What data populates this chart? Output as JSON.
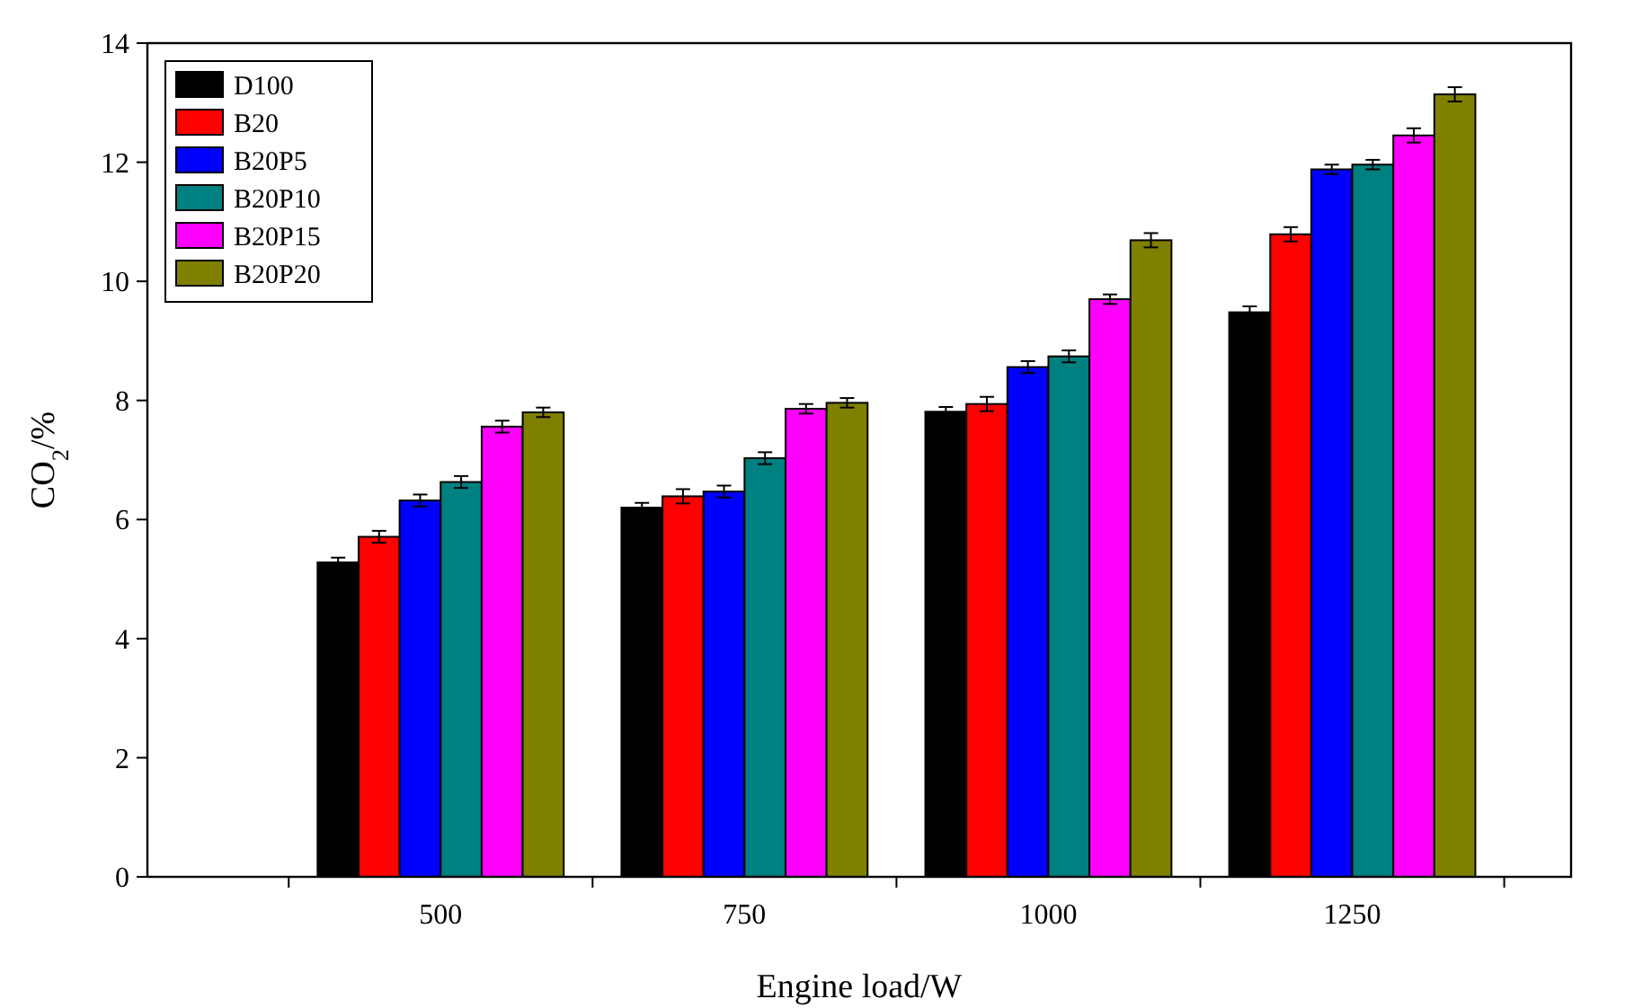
{
  "chart_data": {
    "type": "bar",
    "xlabel": "Engine load/W",
    "ylabel": "CO$_{2}$/%",
    "categories": [
      "500",
      "750",
      "1000",
      "1250"
    ],
    "ylim": [
      0,
      14
    ],
    "yticks": [
      0,
      2,
      4,
      6,
      8,
      10,
      12,
      14
    ],
    "legend": "top left",
    "grid": false,
    "series": [
      {
        "name": "D100",
        "color": "#000000",
        "values": [
          5.28,
          6.2,
          7.81,
          9.48
        ],
        "errors": [
          0.08,
          0.08,
          0.08,
          0.1
        ]
      },
      {
        "name": "B20",
        "color": "#ff0000",
        "values": [
          5.71,
          6.39,
          7.94,
          10.79
        ],
        "errors": [
          0.1,
          0.12,
          0.12,
          0.12
        ]
      },
      {
        "name": "B20P5",
        "color": "#0000ff",
        "values": [
          6.32,
          6.47,
          8.56,
          11.88
        ],
        "errors": [
          0.1,
          0.1,
          0.1,
          0.08
        ]
      },
      {
        "name": "B20P10",
        "color": "#008080",
        "values": [
          6.63,
          7.03,
          8.74,
          11.96
        ],
        "errors": [
          0.1,
          0.1,
          0.1,
          0.08
        ]
      },
      {
        "name": "B20P15",
        "color": "#ff00ff",
        "values": [
          7.56,
          7.86,
          9.7,
          12.45
        ],
        "errors": [
          0.1,
          0.08,
          0.08,
          0.12
        ]
      },
      {
        "name": "B20P20",
        "color": "#808000",
        "values": [
          7.8,
          7.96,
          10.69,
          13.14
        ],
        "errors": [
          0.08,
          0.08,
          0.12,
          0.12
        ]
      }
    ]
  }
}
